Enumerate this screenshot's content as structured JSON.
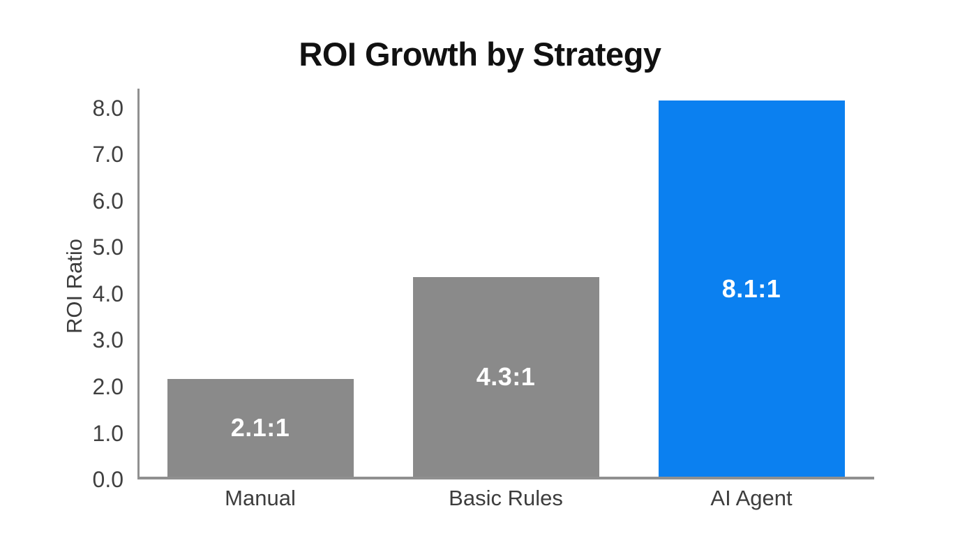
{
  "chart_data": {
    "type": "bar",
    "title": "ROI Growth by Strategy",
    "ylabel": "ROI Ratio",
    "xlabel": "",
    "categories": [
      "Manual",
      "Basic Rules",
      "AI Agent"
    ],
    "values": [
      2.1,
      4.3,
      8.1
    ],
    "bar_labels": [
      "2.1:1",
      "4.3:1",
      "8.1:1"
    ],
    "bar_colors": [
      "#8a8a8a",
      "#8a8a8a",
      "#0b80f0"
    ],
    "ytick_labels": [
      "0.0",
      "1.0",
      "2.0",
      "3.0",
      "4.0",
      "5.0",
      "6.0",
      "7.0",
      "8.0"
    ],
    "ylim": [
      0,
      8.42
    ],
    "grid": false,
    "legend": false,
    "colors": {
      "bar_gray": "#8a8a8a",
      "bar_blue": "#0b80f0",
      "axis": "#909090",
      "tick_text": "#404040",
      "title_text": "#111111",
      "bar_label_text": "#ffffff",
      "background": "#ffffff"
    }
  }
}
